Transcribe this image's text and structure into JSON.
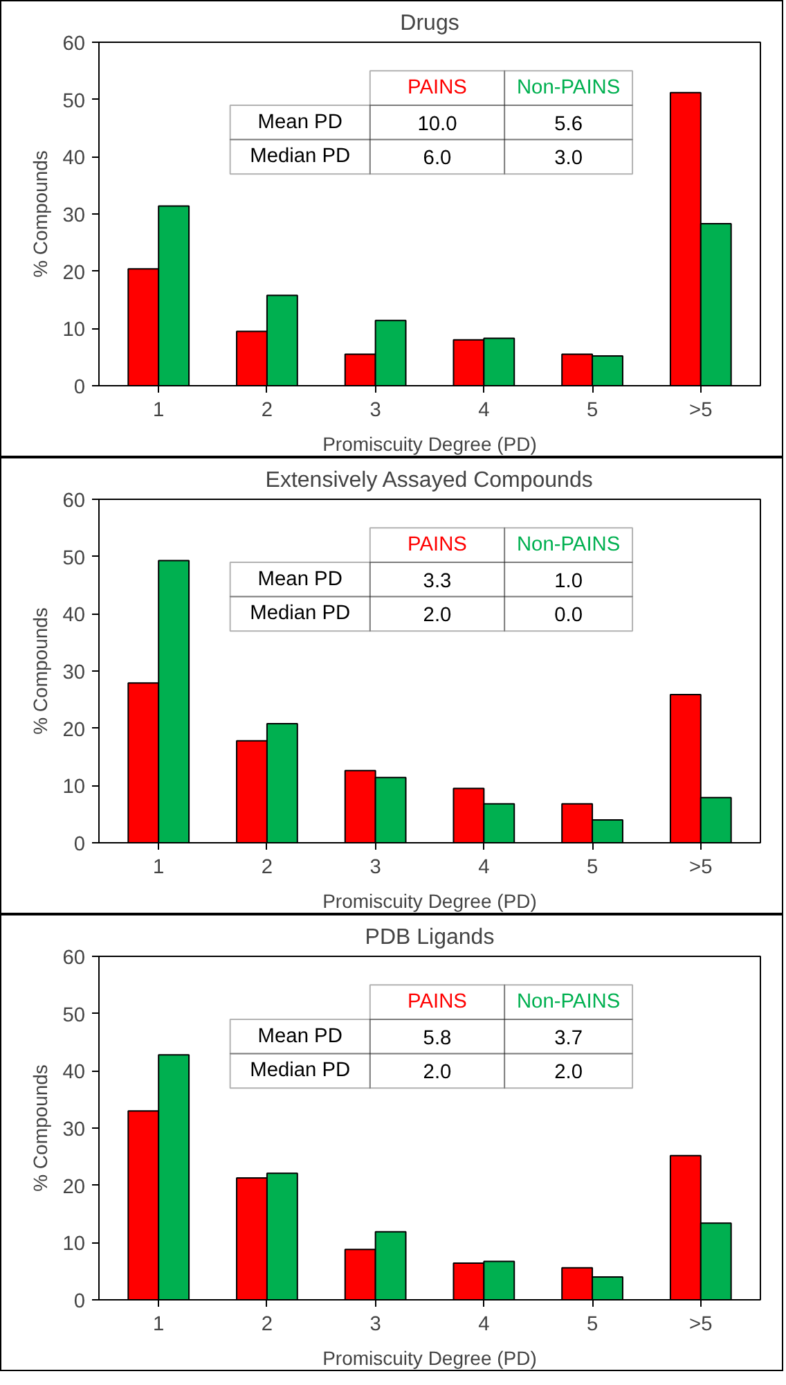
{
  "chart_data": [
    {
      "type": "bar",
      "title": "Drugs",
      "xlabel": "Promiscuity Degree (PD)",
      "ylabel": "% Compounds",
      "categories": [
        "1",
        "2",
        "3",
        "4",
        "5",
        ">5"
      ],
      "ylim": [
        0,
        60
      ],
      "yticks": [
        0,
        10,
        20,
        30,
        40,
        50,
        60
      ],
      "grid": false,
      "legend": false,
      "series": [
        {
          "name": "PAINS",
          "color": "#ff0000",
          "values": [
            20.4,
            9.5,
            5.5,
            8.0,
            5.5,
            51.2
          ]
        },
        {
          "name": "Non-PAINS",
          "color": "#00b050",
          "values": [
            31.4,
            15.8,
            11.4,
            8.3,
            5.2,
            28.3
          ]
        }
      ],
      "annotations": [
        "Mean PD",
        "10.0",
        "5.6",
        "Median PD",
        "6.0",
        "3.0"
      ]
    },
    {
      "type": "bar",
      "title": "Extensively Assayed Compounds",
      "xlabel": "Promiscuity Degree (PD)",
      "ylabel": "% Compounds",
      "categories": [
        "1",
        "2",
        "3",
        "4",
        "5",
        ">5"
      ],
      "ylim": [
        0,
        60
      ],
      "yticks": [
        0,
        10,
        20,
        30,
        40,
        50,
        60
      ],
      "grid": false,
      "legend": false,
      "series": [
        {
          "name": "PAINS",
          "color": "#ff0000",
          "values": [
            27.9,
            17.8,
            12.6,
            9.5,
            6.8,
            25.9
          ]
        },
        {
          "name": "Non-PAINS",
          "color": "#00b050",
          "values": [
            49.3,
            20.8,
            11.4,
            6.8,
            4.0,
            7.9
          ]
        }
      ],
      "annotations": [
        "Mean PD",
        "3.3",
        "1.0",
        "Median PD",
        "2.0",
        "0.0"
      ]
    },
    {
      "type": "bar",
      "title": "PDB Ligands",
      "xlabel": "Promiscuity Degree (PD)",
      "ylabel": "% Compounds",
      "categories": [
        "1",
        "2",
        "3",
        "4",
        "5",
        ">5"
      ],
      "ylim": [
        0,
        60
      ],
      "yticks": [
        0,
        10,
        20,
        30,
        40,
        50,
        60
      ],
      "grid": false,
      "legend": false,
      "series": [
        {
          "name": "PAINS",
          "color": "#ff0000",
          "values": [
            33.0,
            21.3,
            8.8,
            6.4,
            5.6,
            25.2
          ]
        },
        {
          "name": "Non-PAINS",
          "color": "#00b050",
          "values": [
            42.8,
            22.1,
            11.9,
            6.7,
            4.0,
            13.4
          ]
        }
      ],
      "annotations": [
        "Mean PD",
        "5.8",
        "3.7",
        "Median PD",
        "2.0",
        "2.0"
      ]
    }
  ]
}
